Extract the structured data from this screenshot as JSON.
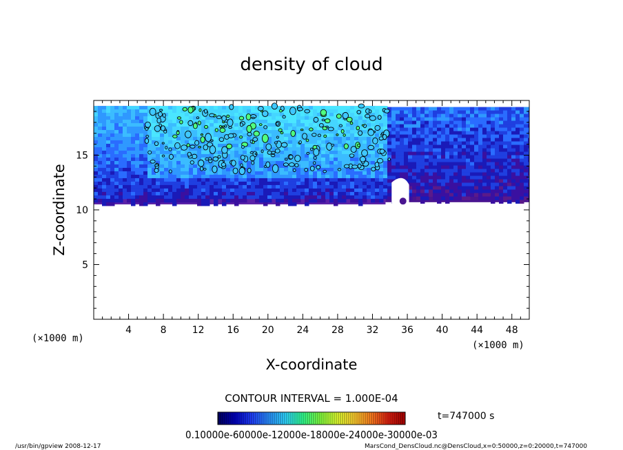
{
  "chart_data": {
    "type": "heatmap",
    "title": "density of cloud",
    "xlabel": "X-coordinate",
    "ylabel": "Z-coordinate",
    "x_unit": "(×1000 m)",
    "y_unit": "(×1000 m)",
    "xlim": [
      0,
      50
    ],
    "ylim": [
      0,
      20
    ],
    "x_ticks": [
      4,
      8,
      12,
      16,
      20,
      24,
      28,
      32,
      36,
      40,
      44,
      48
    ],
    "y_ticks": [
      5,
      10,
      15
    ],
    "cloud_region": {
      "main_body": {
        "x": [
          0,
          33.5
        ],
        "z_bottom": 10.5,
        "z_top": 19.5
      },
      "right_body": {
        "x": [
          33.5,
          50
        ],
        "z_bottom": 10.7,
        "z_top": 19.4
      },
      "dense_core": {
        "x": [
          6,
          34
        ],
        "z": [
          13,
          19.5
        ]
      }
    },
    "contour_interval_text": "CONTOUR INTERVAL = 1.000E-04",
    "time_text": "t=747000 s",
    "colorbar": {
      "labels_text": "0.10000e-60000e-12000e-18000e-24000e-30000e-03",
      "colors": [
        "#000060",
        "#0000c0",
        "#2040ff",
        "#2a90ff",
        "#30d8ff",
        "#30ff90",
        "#80ff40",
        "#e0ff30",
        "#ffd030",
        "#ff8020",
        "#e02010",
        "#a00000"
      ]
    },
    "footer_left": "/usr/bin/gpview   2008-12-17",
    "footer_right": "MarsCond_DensCloud.nc@DensCloud,x=0:50000,z=0:20000,t=747000"
  }
}
